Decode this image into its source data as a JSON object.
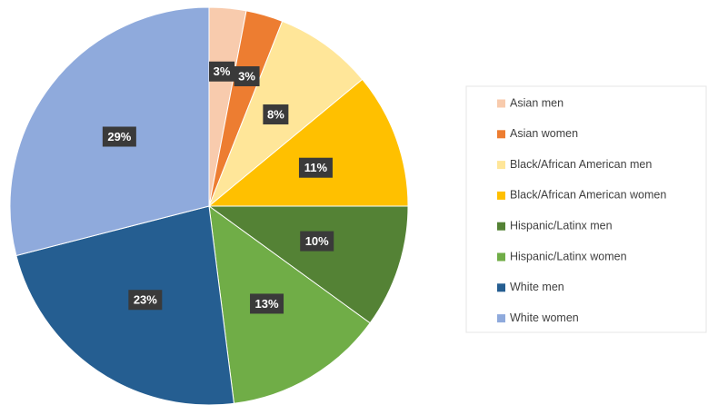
{
  "chart_data": {
    "type": "pie",
    "categories": [
      "Asian men",
      "Asian women",
      "Black/African American men",
      "Black/African American women",
      "Hispanic/Latinx men",
      "Hispanic/Latinx women",
      "White men",
      "White women"
    ],
    "values": [
      3,
      3,
      8,
      11,
      10,
      13,
      23,
      29
    ],
    "value_labels": [
      "3%",
      "3%",
      "8%",
      "11%",
      "10%",
      "13%",
      "23%",
      "29%"
    ],
    "colors": [
      "#f8cbad",
      "#ed7d31",
      "#ffe699",
      "#ffc000",
      "#548235",
      "#70ad47",
      "#255e91",
      "#8faadc"
    ],
    "legend": "right"
  }
}
